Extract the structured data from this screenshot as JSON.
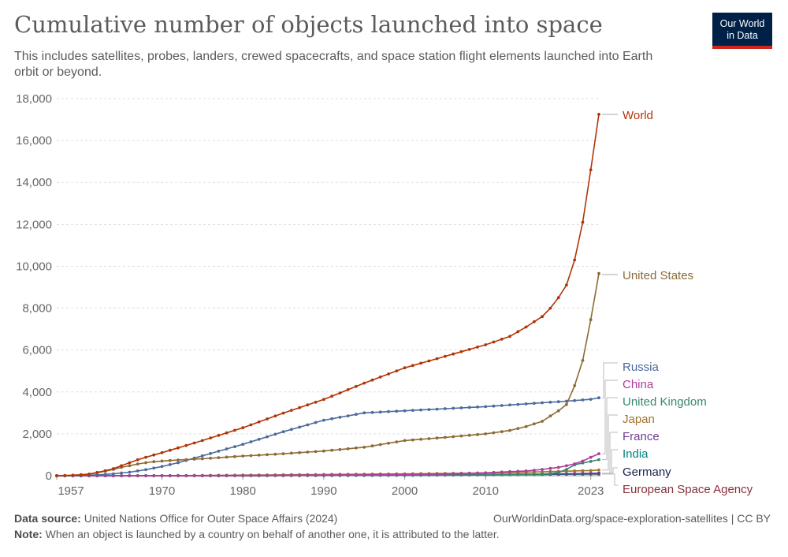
{
  "header": {
    "title": "Cumulative number of objects launched into space",
    "subtitle": "This includes satellites, probes, landers, crewed spacecrafts, and space station flight elements launched into Earth orbit or beyond."
  },
  "logo": {
    "line1": "Our World",
    "line2": "in Data",
    "bg_color": "#002147",
    "accent_color": "#ce261e"
  },
  "footer": {
    "source_label": "Data source:",
    "source_text": "United Nations Office for Outer Space Affairs (2024)",
    "credit": "OurWorldinData.org/space-exploration-satellites | CC BY",
    "note_label": "Note:",
    "note_text": "When an object is launched by a country on behalf of another one, it is attributed to the latter."
  },
  "chart_data": {
    "type": "line",
    "x_range": [
      1957,
      2023
    ],
    "x_ticks": [
      "1957",
      "1970",
      "1980",
      "1990",
      "2000",
      "2010",
      "2023"
    ],
    "y_range": [
      0,
      18000
    ],
    "y_ticks": [
      "0",
      "2,000",
      "4,000",
      "6,000",
      "8,000",
      "10,000",
      "12,000",
      "14,000",
      "16,000",
      "18,000"
    ],
    "grid": "horizontal dashed",
    "legend": "right",
    "series": [
      {
        "name": "World",
        "color": "#b13507",
        "points": [
          [
            1957,
            2
          ],
          [
            1958,
            10
          ],
          [
            1959,
            25
          ],
          [
            1960,
            50
          ],
          [
            1961,
            80
          ],
          [
            1962,
            160
          ],
          [
            1963,
            240
          ],
          [
            1964,
            340
          ],
          [
            1965,
            480
          ],
          [
            1966,
            620
          ],
          [
            1967,
            760
          ],
          [
            1968,
            880
          ],
          [
            1969,
            990
          ],
          [
            1970,
            1100
          ],
          [
            1972,
            1330
          ],
          [
            1975,
            1680
          ],
          [
            1980,
            2290
          ],
          [
            1985,
            2990
          ],
          [
            1990,
            3640
          ],
          [
            1995,
            4420
          ],
          [
            2000,
            5150
          ],
          [
            2005,
            5700
          ],
          [
            2010,
            6250
          ],
          [
            2013,
            6650
          ],
          [
            2015,
            7100
          ],
          [
            2017,
            7600
          ],
          [
            2018,
            8000
          ],
          [
            2019,
            8500
          ],
          [
            2020,
            9100
          ],
          [
            2021,
            10300
          ],
          [
            2022,
            12100
          ],
          [
            2023,
            14600
          ],
          [
            2024,
            17250
          ]
        ]
      },
      {
        "name": "United States",
        "color": "#8c6b35",
        "points": [
          [
            1957,
            0
          ],
          [
            1958,
            8
          ],
          [
            1959,
            20
          ],
          [
            1960,
            40
          ],
          [
            1961,
            70
          ],
          [
            1962,
            140
          ],
          [
            1963,
            220
          ],
          [
            1964,
            300
          ],
          [
            1965,
            400
          ],
          [
            1966,
            480
          ],
          [
            1967,
            560
          ],
          [
            1968,
            620
          ],
          [
            1969,
            670
          ],
          [
            1970,
            700
          ],
          [
            1972,
            750
          ],
          [
            1975,
            810
          ],
          [
            1980,
            940
          ],
          [
            1985,
            1050
          ],
          [
            1990,
            1180
          ],
          [
            1995,
            1360
          ],
          [
            2000,
            1680
          ],
          [
            2005,
            1830
          ],
          [
            2010,
            2000
          ],
          [
            2013,
            2160
          ],
          [
            2015,
            2350
          ],
          [
            2017,
            2600
          ],
          [
            2018,
            2850
          ],
          [
            2019,
            3100
          ],
          [
            2020,
            3400
          ],
          [
            2021,
            4300
          ],
          [
            2022,
            5500
          ],
          [
            2023,
            7450
          ],
          [
            2024,
            9650
          ]
        ]
      },
      {
        "name": "Russia",
        "color": "#4c6a9c",
        "points": [
          [
            1957,
            2
          ],
          [
            1960,
            15
          ],
          [
            1962,
            40
          ],
          [
            1964,
            90
          ],
          [
            1966,
            170
          ],
          [
            1968,
            290
          ],
          [
            1970,
            440
          ],
          [
            1972,
            620
          ],
          [
            1975,
            950
          ],
          [
            1980,
            1500
          ],
          [
            1985,
            2100
          ],
          [
            1990,
            2650
          ],
          [
            1995,
            3000
          ],
          [
            2000,
            3100
          ],
          [
            2005,
            3200
          ],
          [
            2010,
            3300
          ],
          [
            2015,
            3430
          ],
          [
            2020,
            3560
          ],
          [
            2023,
            3650
          ],
          [
            2024,
            3720
          ]
        ]
      },
      {
        "name": "China",
        "color": "#b03c9b",
        "points": [
          [
            1957,
            0
          ],
          [
            1970,
            1
          ],
          [
            1975,
            5
          ],
          [
            1980,
            10
          ],
          [
            1985,
            20
          ],
          [
            1990,
            30
          ],
          [
            1995,
            40
          ],
          [
            2000,
            60
          ],
          [
            2005,
            90
          ],
          [
            2010,
            140
          ],
          [
            2015,
            230
          ],
          [
            2017,
            300
          ],
          [
            2019,
            400
          ],
          [
            2020,
            480
          ],
          [
            2021,
            570
          ],
          [
            2022,
            700
          ],
          [
            2023,
            880
          ],
          [
            2024,
            1050
          ]
        ]
      },
      {
        "name": "United Kingdom",
        "color": "#38896b",
        "points": [
          [
            1957,
            0
          ],
          [
            1962,
            1
          ],
          [
            1965,
            3
          ],
          [
            1970,
            5
          ],
          [
            1980,
            10
          ],
          [
            1990,
            20
          ],
          [
            2000,
            30
          ],
          [
            2010,
            40
          ],
          [
            2015,
            60
          ],
          [
            2018,
            100
          ],
          [
            2019,
            160
          ],
          [
            2020,
            300
          ],
          [
            2021,
            520
          ],
          [
            2022,
            610
          ],
          [
            2023,
            680
          ],
          [
            2024,
            770
          ]
        ]
      },
      {
        "name": "Japan",
        "color": "#a2702b",
        "points": [
          [
            1957,
            0
          ],
          [
            1970,
            1
          ],
          [
            1975,
            15
          ],
          [
            1980,
            30
          ],
          [
            1990,
            60
          ],
          [
            2000,
            90
          ],
          [
            2010,
            130
          ],
          [
            2015,
            170
          ],
          [
            2020,
            220
          ],
          [
            2023,
            250
          ],
          [
            2024,
            270
          ]
        ]
      },
      {
        "name": "France",
        "color": "#6c3d91",
        "points": [
          [
            1957,
            0
          ],
          [
            1965,
            1
          ],
          [
            1970,
            5
          ],
          [
            1980,
            10
          ],
          [
            1990,
            20
          ],
          [
            2000,
            40
          ],
          [
            2010,
            60
          ],
          [
            2020,
            90
          ],
          [
            2024,
            110
          ]
        ]
      },
      {
        "name": "India",
        "color": "#00847e",
        "points": [
          [
            1957,
            0
          ],
          [
            1975,
            1
          ],
          [
            1980,
            3
          ],
          [
            1990,
            10
          ],
          [
            2000,
            20
          ],
          [
            2010,
            40
          ],
          [
            2020,
            70
          ],
          [
            2024,
            90
          ]
        ]
      },
      {
        "name": "Germany",
        "color": "#18214e",
        "points": [
          [
            1957,
            0
          ],
          [
            1970,
            2
          ],
          [
            1980,
            8
          ],
          [
            1990,
            15
          ],
          [
            2000,
            30
          ],
          [
            2010,
            50
          ],
          [
            2020,
            90
          ],
          [
            2024,
            120
          ]
        ]
      },
      {
        "name": "European Space Agency",
        "color": "#883039",
        "points": [
          [
            1957,
            0
          ],
          [
            1975,
            1
          ],
          [
            1980,
            3
          ],
          [
            1990,
            15
          ],
          [
            2000,
            30
          ],
          [
            2010,
            50
          ],
          [
            2020,
            70
          ],
          [
            2024,
            80
          ]
        ]
      }
    ]
  }
}
